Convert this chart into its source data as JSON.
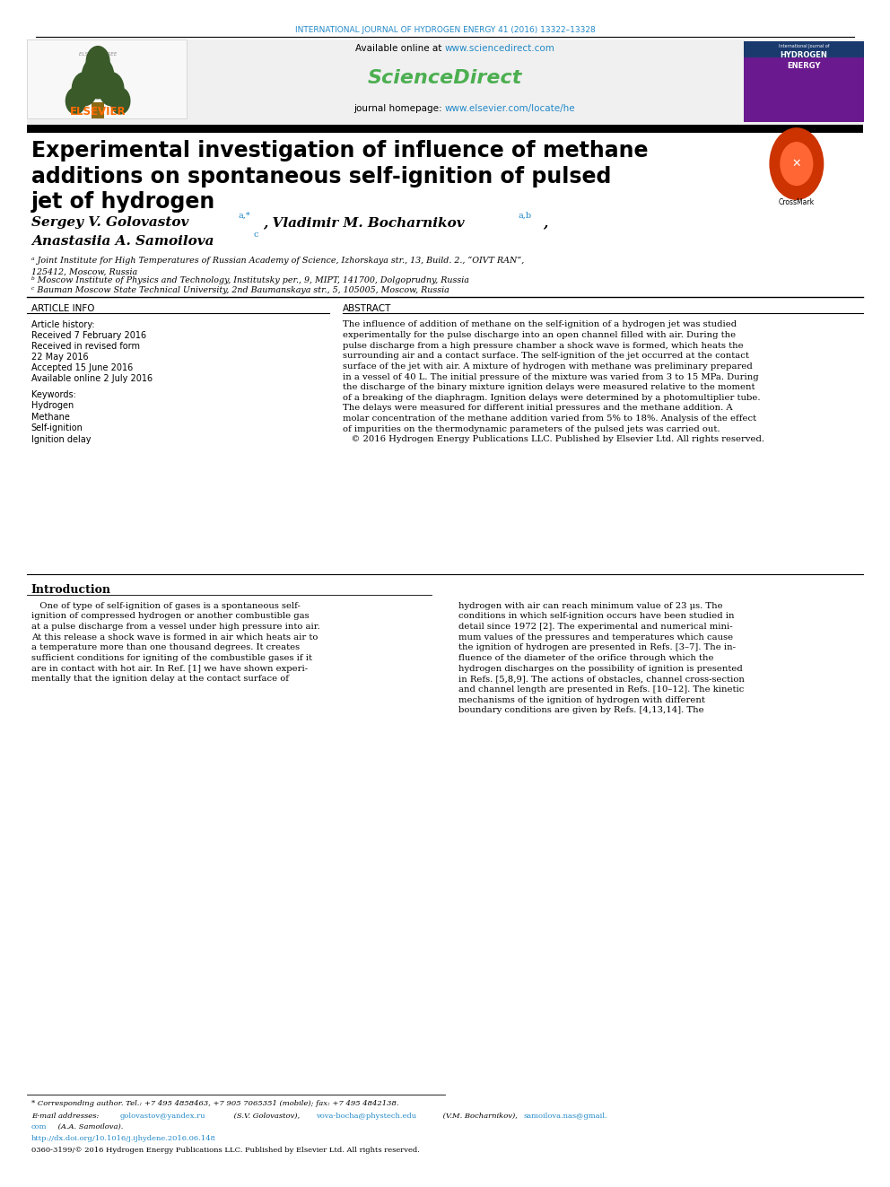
{
  "journal_line": "INTERNATIONAL JOURNAL OF HYDROGEN ENERGY 41 (2016) 13322–13328",
  "journal_color": "#2389C8",
  "available_online": "Available online at ",
  "sciencedirect_url": "www.sciencedirect.com",
  "sciencedirect_label": "ScienceDirect",
  "sciencedirect_color": "#4CAF50",
  "journal_homepage": "journal homepage: ",
  "journal_url": "www.elsevier.com/locate/he",
  "url_color": "#2389C8",
  "elsevier_color": "#FF6B00",
  "title_line1": "Experimental investigation of influence of methane",
  "title_line2": "additions on spontaneous self-ignition of pulsed",
  "title_line3": "jet of hydrogen",
  "affil_a": "ᵃ Joint Institute for High Temperatures of Russian Academy of Science, Izhorskaya str., 13, Build. 2., “OIVT RAN”,\n125412, Moscow, Russia",
  "affil_b": "ᵇ Moscow Institute of Physics and Technology, Institutsky per., 9, MIPT, 141700, Dolgoprudny, Russia",
  "affil_c": "ᶜ Bauman Moscow State Technical University, 2nd Baumanskaya str., 5, 105005, Moscow, Russia",
  "article_info_header": "ARTICLE INFO",
  "abstract_header": "ABSTRACT",
  "article_history": "Article history:",
  "received": "Received 7 February 2016",
  "received_revised1": "Received in revised form",
  "received_revised2": "22 May 2016",
  "accepted": "Accepted 15 June 2016",
  "available": "Available online 2 July 2016",
  "keywords_header": "Keywords:",
  "kw1": "Hydrogen",
  "kw2": "Methane",
  "kw3": "Self-ignition",
  "kw4": "Ignition delay",
  "abstract_text": "The influence of addition of methane on the self-ignition of a hydrogen jet was studied\nexperimentally for the pulse discharge into an open channel filled with air. During the\npulse discharge from a high pressure chamber a shock wave is formed, which heats the\nsurrounding air and a contact surface. The self-ignition of the jet occurred at the contact\nsurface of the jet with air. A mixture of hydrogen with methane was preliminary prepared\nin a vessel of 40 L. The initial pressure of the mixture was varied from 3 to 15 MPa. During\nthe discharge of the binary mixture ignition delays were measured relative to the moment\nof a breaking of the diaphragm. Ignition delays were determined by a photomultiplier tube.\nThe delays were measured for different initial pressures and the methane addition. A\nmolar concentration of the methane addition varied from 5% to 18%. Analysis of the effect\nof impurities on the thermodynamic parameters of the pulsed jets was carried out.\n   © 2016 Hydrogen Energy Publications LLC. Published by Elsevier Ltd. All rights reserved.",
  "intro_header": "Introduction",
  "intro_col1": "   One of type of self-ignition of gases is a spontaneous self-\nignition of compressed hydrogen or another combustible gas\nat a pulse discharge from a vessel under high pressure into air.\nAt this release a shock wave is formed in air which heats air to\na temperature more than one thousand degrees. It creates\nsufficient conditions for igniting of the combustible gases if it\nare in contact with hot air. In Ref. [1] we have shown experi-\nmentally that the ignition delay at the contact surface of",
  "intro_col2": "hydrogen with air can reach minimum value of 23 μs. The\nconditions in which self-ignition occurs have been studied in\ndetail since 1972 [2]. The experimental and numerical mini-\nmum values of the pressures and temperatures which cause\nthe ignition of hydrogen are presented in Refs. [3–7]. The in-\nfluence of the diameter of the orifice through which the\nhydrogen discharges on the possibility of ignition is presented\nin Refs. [5,8,9]. The actions of obstacles, channel cross-section\nand channel length are presented in Refs. [10–12]. The kinetic\nmechanisms of the ignition of hydrogen with different\nboundary conditions are given by Refs. [4,13,14]. The",
  "footnote_corr": "* Corresponding author. Tel.: +7 495 4858463, +7 905 7065351 (mobile); fax: +7 495 4842138.",
  "footnote_email1": "E-mail addresses: ",
  "footnote_email2": "golovastov@yandex.ru",
  "footnote_email3": " (S.V. Golovastov), ",
  "footnote_email4": "vova-bocha@phystech.edu",
  "footnote_email5": " (V.M. Bocharnikov), ",
  "footnote_email6": "samoilova.nas@gmail.\ncom",
  "footnote_email7": " (A.A. Samoilova).",
  "footnote_doi": "http://dx.doi.org/10.1016/j.ijhydene.2016.06.148",
  "footnote_issn": "0360-3199/© 2016 Hydrogen Energy Publications LLC. Published by Elsevier Ltd. All rights reserved.",
  "background_color": "#FFFFFF",
  "text_color": "#000000"
}
